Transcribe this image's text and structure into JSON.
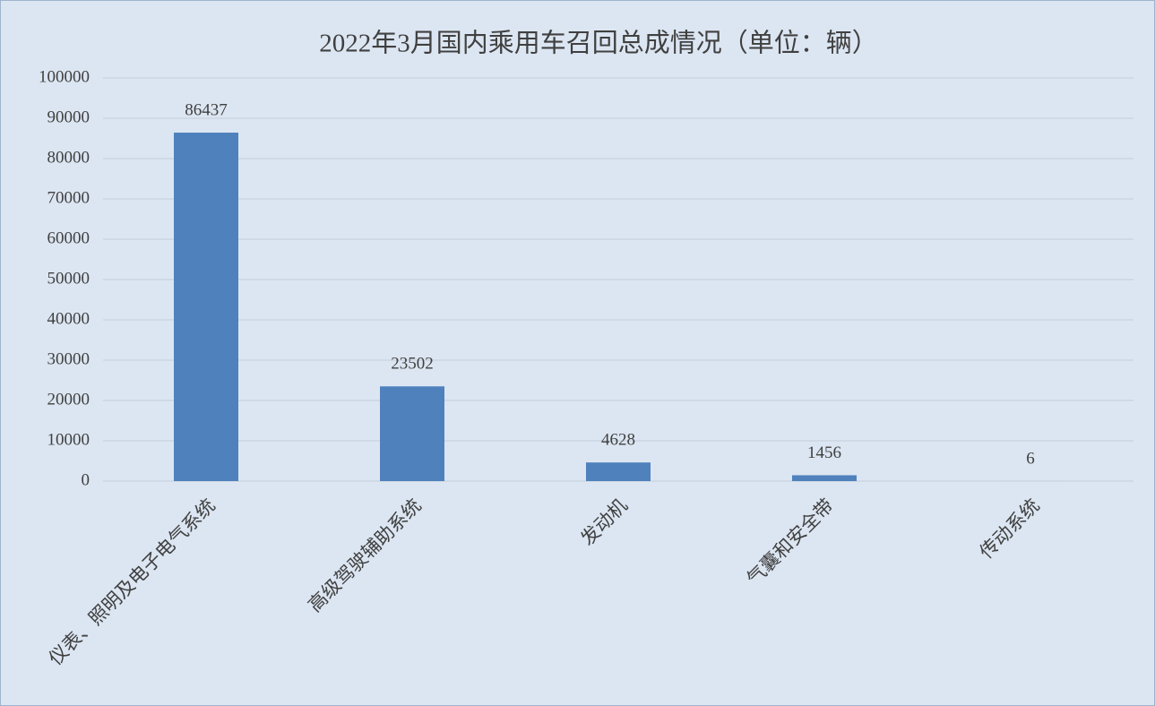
{
  "chart_data": {
    "type": "bar",
    "title": "2022年3月国内乘用车召回总成情况（单位：辆）",
    "categories": [
      "仪表、照明及电子电气系统",
      "高级驾驶辅助系统",
      "发动机",
      "气囊和安全带",
      "传动系统"
    ],
    "values": [
      86437,
      23502,
      4628,
      1456,
      6
    ],
    "color": "#4f81bd",
    "ylim": [
      0,
      100000
    ],
    "yticks": [
      0,
      10000,
      20000,
      30000,
      40000,
      50000,
      60000,
      70000,
      80000,
      90000,
      100000
    ],
    "grid": true
  }
}
